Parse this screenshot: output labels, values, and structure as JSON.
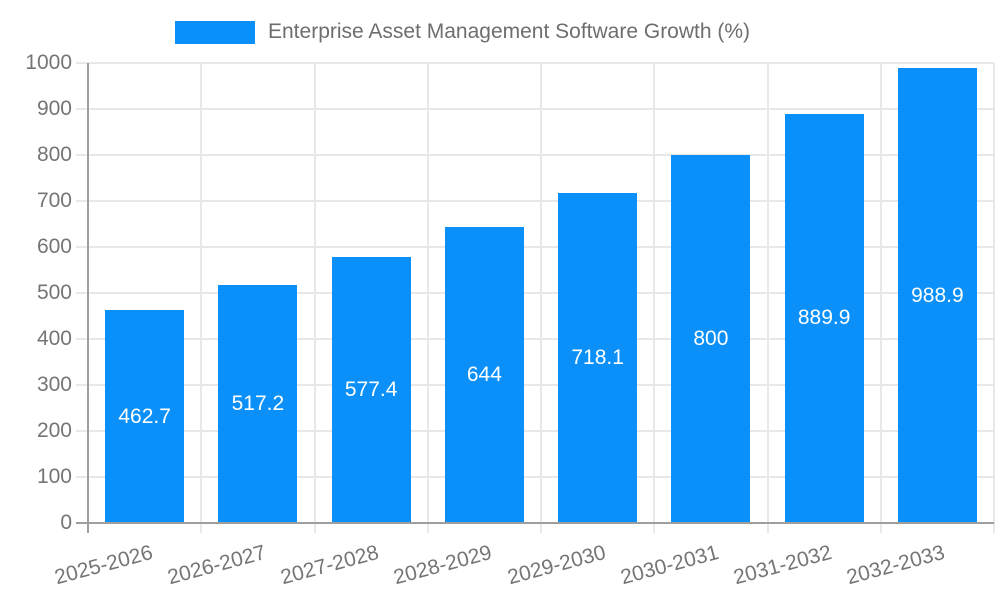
{
  "chart_data": {
    "type": "bar",
    "title": "Enterprise Asset Management Software Growth (%)",
    "xlabel": "",
    "ylabel": "",
    "categories": [
      "2025-2026",
      "2026-2027",
      "2027-2028",
      "2028-2029",
      "2029-2030",
      "2030-2031",
      "2031-2032",
      "2032-2033"
    ],
    "values": [
      462.7,
      517.2,
      577.4,
      644,
      718.1,
      800,
      889.9,
      988.9
    ],
    "ylim": [
      0,
      1000
    ],
    "ytick_step": 100,
    "ytick_labels": [
      "0",
      "100",
      "200",
      "300",
      "400",
      "500",
      "600",
      "700",
      "800",
      "900",
      "1000"
    ],
    "grid": true,
    "legend_position": "top",
    "bar_label_position": "center-of-bar",
    "colors": {
      "bar": "#0a90f8",
      "grid": "#e8e8e8",
      "axis": "#9e9e9e",
      "tick_text": "#757575",
      "value_text": "#ffffff",
      "legend_text": "#6e6e6e",
      "background": "#ffffff"
    }
  }
}
